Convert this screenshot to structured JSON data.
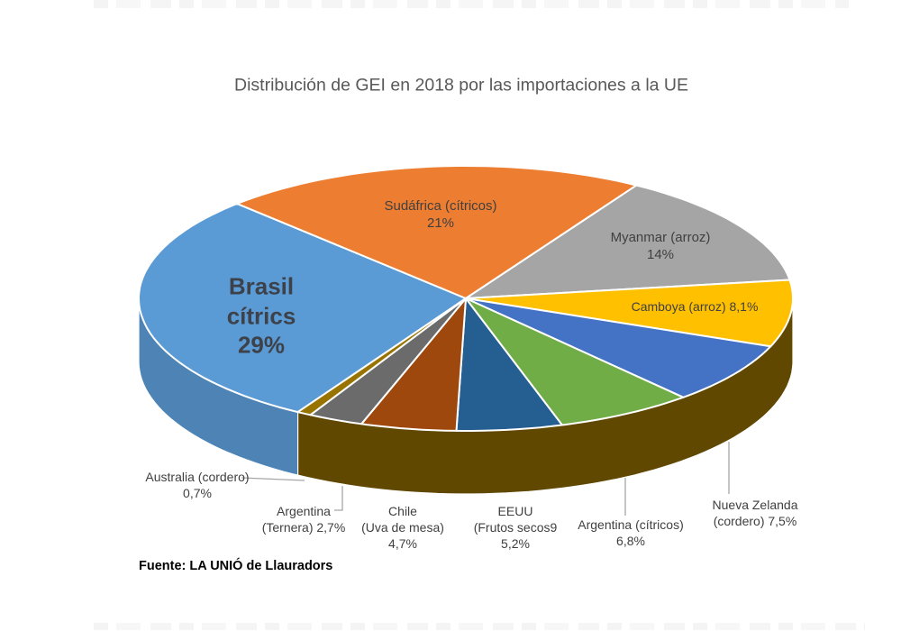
{
  "page": {
    "title": "Distribución de GEI en 2018 por las importaciones a la UE",
    "source": "Fuente: LA UNIÓ de Llauradors"
  },
  "chart_data": {
    "type": "pie",
    "style": "3d",
    "title": "Distribución de GEI en 2018 por las importaciones a la UE",
    "unit": "%",
    "legend_position": "none",
    "labels_on_slices": true,
    "clockwise": true,
    "start_angle_deg": 210.9,
    "slices": [
      {
        "id": "brasil",
        "label": "Brasil cítrics",
        "value": 29,
        "pct_text": "29%",
        "display": "Brasil\ncítrics\n29%",
        "color": "#5B9BD5"
      },
      {
        "id": "sudafrica",
        "label": "Sudáfrica (cítricos)",
        "value": 21,
        "pct_text": "21%",
        "display": "Sudáfrica (cítricos)\n21%",
        "color": "#ED7D31"
      },
      {
        "id": "myanmar",
        "label": "Myanmar (arroz)",
        "value": 14,
        "pct_text": "14%",
        "display": "Myanmar (arroz)\n14%",
        "color": "#A5A5A5"
      },
      {
        "id": "camboya",
        "label": "Camboya (arroz)",
        "value": 8.1,
        "pct_text": "8,1%",
        "display": "Camboya (arroz) 8,1%",
        "color": "#FFC000"
      },
      {
        "id": "nueva-zelanda",
        "label": "Nueva Zelanda (cordero)",
        "value": 7.5,
        "pct_text": "7,5%",
        "display": "Nueva Zelanda\n(cordero) 7,5%",
        "color": "#4472C4"
      },
      {
        "id": "argentina-citricos",
        "label": "Argentina (cítricos)",
        "value": 6.8,
        "pct_text": "6,8%",
        "display": "Argentina (cítricos)\n6,8%",
        "color": "#70AD47"
      },
      {
        "id": "eeuu",
        "label": "EEUU (Frutos secos)",
        "value": 5.2,
        "pct_text": "5,2%",
        "display": "EEUU\n(Frutos secos9\n5,2%",
        "color": "#255E91"
      },
      {
        "id": "chile",
        "label": "Chile (Uva de mesa)",
        "value": 4.7,
        "pct_text": "4,7%",
        "display": "Chile\n(Uva de mesa)\n4,7%",
        "color": "#9E480E"
      },
      {
        "id": "argentina-ternera",
        "label": "Argentina (Ternera)",
        "value": 2.7,
        "pct_text": "2,7%",
        "display": "Argentina\n(Ternera) 2,7%",
        "color": "#6B6B6B"
      },
      {
        "id": "australia",
        "label": "Australia (cordero)",
        "value": 0.7,
        "pct_text": "0,7%",
        "display": "Australia  (cordero)\n0,7%",
        "color": "#997300"
      }
    ]
  },
  "colors": {
    "title_text": "#595959",
    "label_text": "#404040",
    "leader_line": "#A6A6A6",
    "slice_outline": "#FFFFFF",
    "background": "#FFFFFF"
  }
}
